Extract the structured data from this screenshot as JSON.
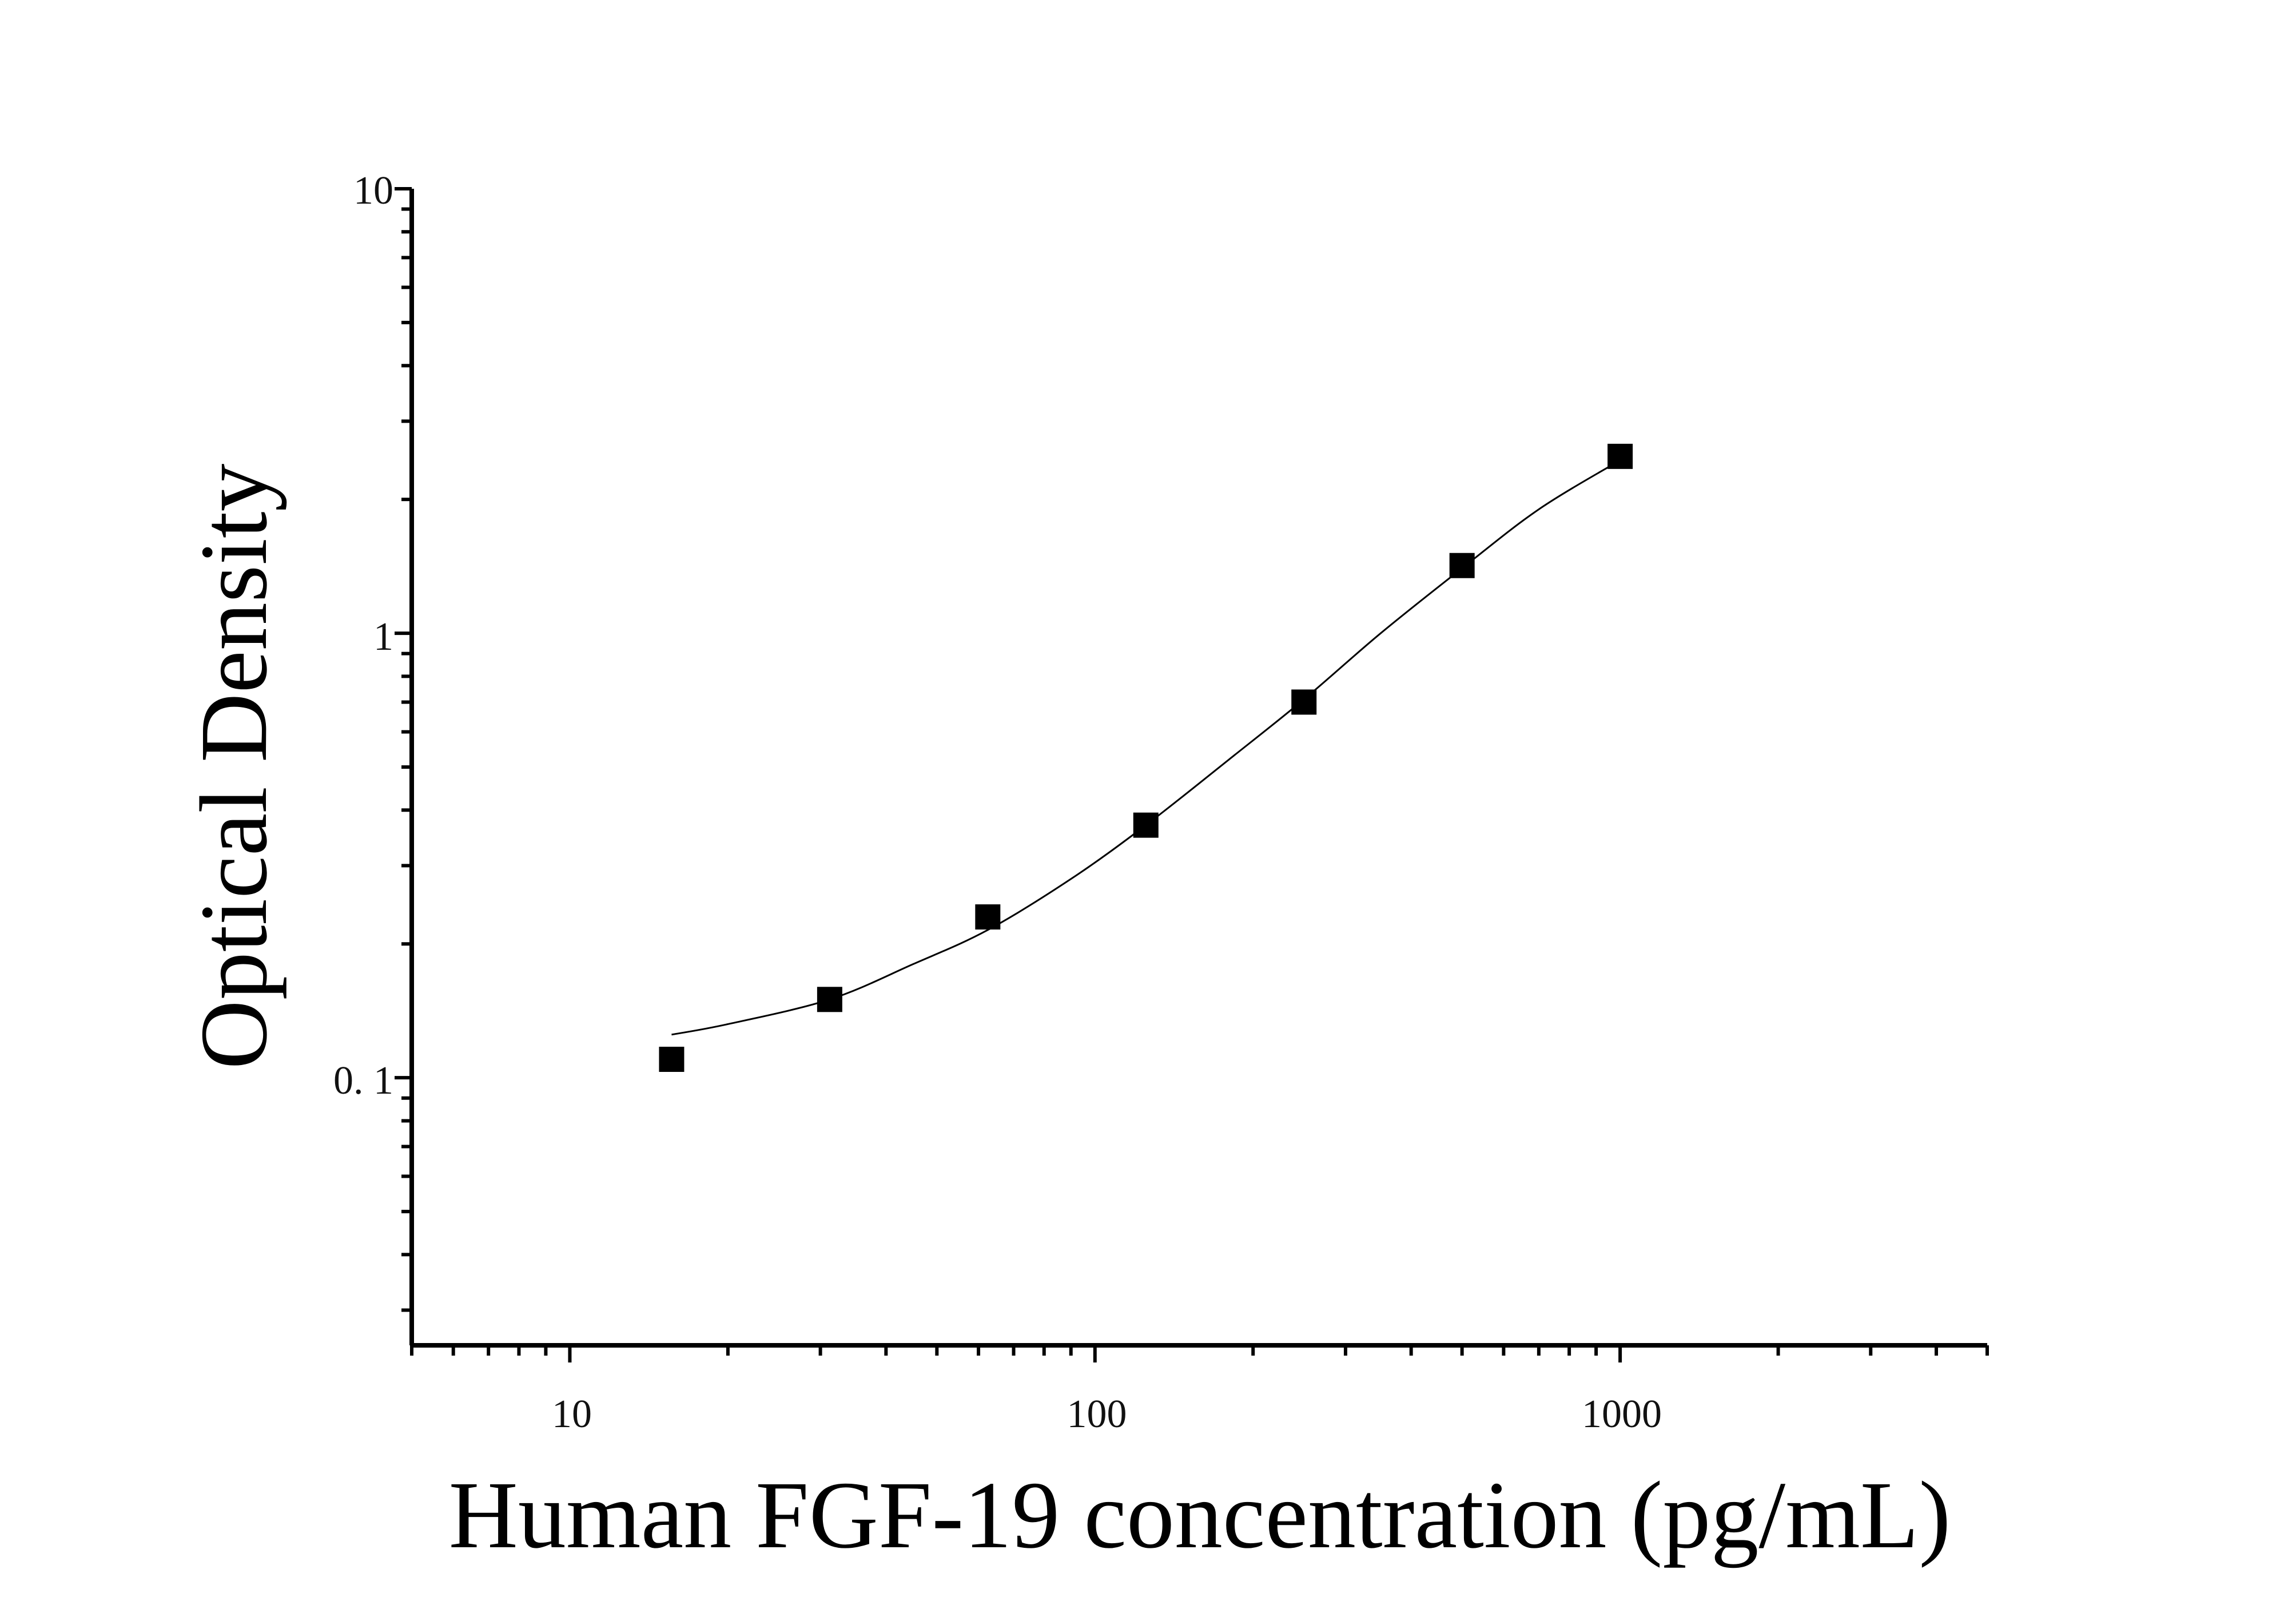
{
  "chart_data": {
    "type": "scatter",
    "title": "",
    "xlabel": "Human FGF-19 concentration (pg/mL)",
    "ylabel": "Optical Density",
    "x_scale": "log",
    "y_scale": "log",
    "xlim": [
      5,
      5000
    ],
    "ylim": [
      0.025,
      10
    ],
    "x_tick_labels": [
      "10",
      "100",
      "1000"
    ],
    "y_tick_labels": [
      "0. 1",
      "1",
      "10"
    ],
    "grid": false,
    "legend": "none",
    "series": [
      {
        "marker": "square",
        "color": "#000000",
        "points": [
          {
            "x": 15.625,
            "y": 0.11
          },
          {
            "x": 31.25,
            "y": 0.15
          },
          {
            "x": 62.5,
            "y": 0.23
          },
          {
            "x": 125,
            "y": 0.37
          },
          {
            "x": 250,
            "y": 0.7
          },
          {
            "x": 500,
            "y": 1.42
          },
          {
            "x": 1000,
            "y": 2.5
          }
        ]
      }
    ],
    "fit_curve": {
      "color": "#000000",
      "points": [
        {
          "x": 15.625,
          "y": 0.125
        },
        {
          "x": 20,
          "y": 0.132
        },
        {
          "x": 31.25,
          "y": 0.15
        },
        {
          "x": 45,
          "y": 0.18
        },
        {
          "x": 62.5,
          "y": 0.215
        },
        {
          "x": 90,
          "y": 0.28
        },
        {
          "x": 125,
          "y": 0.37
        },
        {
          "x": 180,
          "y": 0.52
        },
        {
          "x": 250,
          "y": 0.71
        },
        {
          "x": 350,
          "y": 1.0
        },
        {
          "x": 500,
          "y": 1.4
        },
        {
          "x": 700,
          "y": 1.9
        },
        {
          "x": 1000,
          "y": 2.45
        }
      ]
    }
  }
}
